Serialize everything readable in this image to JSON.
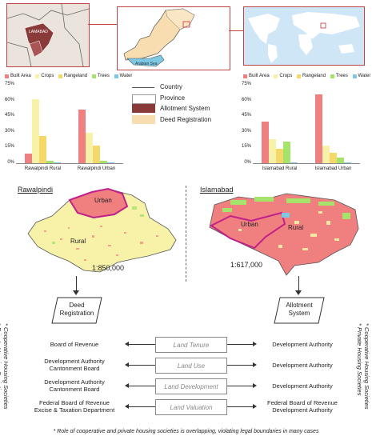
{
  "maps": {
    "inset_label": "LAMABAD",
    "sea_label": "Arabian Sea",
    "rawalpindi_title": "Rawalpindi",
    "islamabad_title": "Islamabad",
    "rawalpindi_urban": "Urban",
    "rawalpindi_rural": "Rural",
    "islamabad_urban": "Urban",
    "islamabad_rural": "Rural",
    "rawalpindi_scale": "1:850,000",
    "islamabad_scale": "1:617,000"
  },
  "map_legend": {
    "country": "Country",
    "province": "Province",
    "allotment": "Allotment System",
    "deed": "Deed Registration",
    "colors": {
      "allotment": "#8b3a3a",
      "deed": "#f8ddb0"
    }
  },
  "colors": {
    "built": "#f08080",
    "crops": "#f7f2a8",
    "rangeland": "#f5d86a",
    "trees": "#a6e36a",
    "water": "#7ec8e3",
    "boundary": "#c0208a"
  },
  "chart_data": [
    {
      "type": "bar",
      "categories": [
        "Rawalpindi Rural",
        "Rawalpindi Urban"
      ],
      "ylim": [
        0,
        75
      ],
      "yticks": [
        "0%",
        "15%",
        "30%",
        "45%",
        "60%",
        "75%"
      ],
      "series": [
        {
          "name": "Built Area",
          "values": [
            9,
            51
          ]
        },
        {
          "name": "Crops",
          "values": [
            61,
            29
          ]
        },
        {
          "name": "Rangeland",
          "values": [
            26,
            17
          ]
        },
        {
          "name": "Trees",
          "values": [
            2,
            2
          ]
        },
        {
          "name": "Water",
          "values": [
            1,
            1
          ]
        }
      ]
    },
    {
      "type": "bar",
      "categories": [
        "Islamabad Rural",
        "Islamabad Urban"
      ],
      "ylim": [
        0,
        75
      ],
      "yticks": [
        "0%",
        "15%",
        "30%",
        "45%",
        "60%",
        "75%"
      ],
      "series": [
        {
          "name": "Built Area",
          "values": [
            40,
            66
          ]
        },
        {
          "name": "Crops",
          "values": [
            23,
            17
          ]
        },
        {
          "name": "Rangeland",
          "values": [
            14,
            10
          ]
        },
        {
          "name": "Trees",
          "values": [
            21,
            5
          ]
        },
        {
          "name": "Water",
          "values": [
            1,
            1
          ]
        }
      ]
    }
  ],
  "flow": {
    "left_box": "Deed Registration",
    "right_box": "Allotment System",
    "rows": [
      {
        "left": "Board of Revenue",
        "center": "Land Tenure",
        "right": "Development Authority"
      },
      {
        "left": "Development Authority\nCantonment Board",
        "center": "Land Use",
        "right": "Development Authority"
      },
      {
        "left": "Development Authority\nCantonment Board",
        "center": "Land Development",
        "right": "Development Authority"
      },
      {
        "left": "Federal Board of Revenue\nExcise & Taxation Department",
        "center": "Land Valuation",
        "right": "Federal Board of Revenue\nDevelopment Authority"
      }
    ],
    "side_note_1": "* Cooperative Housing Societies",
    "side_note_2": "* Private Housing Societies",
    "footnote": "* Role of cooperative and private housing societies is overlapping, violating legal boundaries in many cases"
  }
}
